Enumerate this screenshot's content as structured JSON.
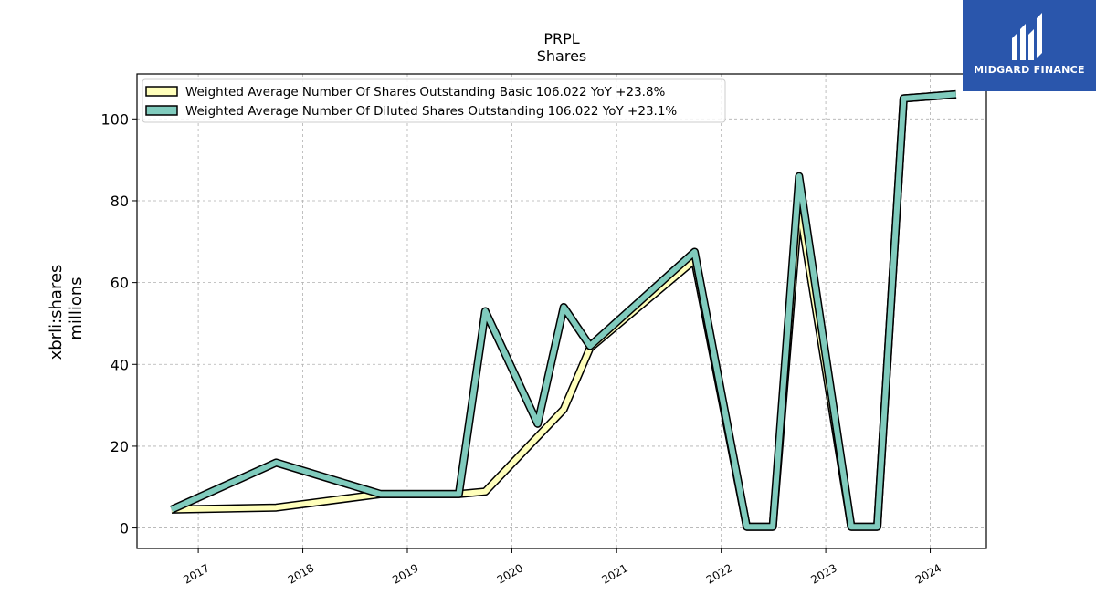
{
  "chart_data": {
    "type": "line",
    "title": "PRPL",
    "subtitle": "Shares",
    "ylabel": "xbrli:shares",
    "ylabel2": "millions",
    "xlabel": "",
    "xlim": [
      "2016-06-01",
      "2024-07-15"
    ],
    "ylim": [
      -5,
      111
    ],
    "y_ticks": [
      0,
      20,
      40,
      60,
      80,
      100
    ],
    "x_ticks": [
      "2017",
      "2018",
      "2019",
      "2020",
      "2021",
      "2022",
      "2023",
      "2024"
    ],
    "grid": true,
    "legend_position": "top-left",
    "series": [
      {
        "name": "Weighted Average Number Of Shares Outstanding Basic  106.022 YoY +23.8%",
        "color": "#ffffbb",
        "x": [
          "2016-09-30",
          "2017-09-30",
          "2018-09-30",
          "2019-06-30",
          "2019-09-30",
          "2020-06-30",
          "2020-09-30",
          "2021-09-30",
          "2022-03-31",
          "2022-06-30",
          "2022-09-30",
          "2023-03-31",
          "2023-06-30",
          "2023-09-30",
          "2024-03-31"
        ],
        "y": [
          4.5,
          5.0,
          8.3,
          8.3,
          8.9,
          29.0,
          44.0,
          65.5,
          0.3,
          0.3,
          79.0,
          0.3,
          0.3,
          105.0,
          106.0
        ]
      },
      {
        "name": "Weighted Average Number Of Diluted Shares Outstanding  106.022 YoY +23.1%",
        "color": "#80cbbd",
        "x": [
          "2016-09-30",
          "2017-09-30",
          "2018-09-30",
          "2019-06-30",
          "2019-09-30",
          "2020-03-31",
          "2020-06-30",
          "2020-09-30",
          "2021-09-30",
          "2022-03-31",
          "2022-06-30",
          "2022-09-30",
          "2023-03-31",
          "2023-06-30",
          "2023-09-30",
          "2024-03-31"
        ],
        "y": [
          4.5,
          16.0,
          8.3,
          8.3,
          53.0,
          25.5,
          54.0,
          44.5,
          67.5,
          0.3,
          0.3,
          86.0,
          0.3,
          0.3,
          105.0,
          106.0
        ]
      }
    ]
  },
  "logo": {
    "text": "MIDGARD FINANCE"
  }
}
